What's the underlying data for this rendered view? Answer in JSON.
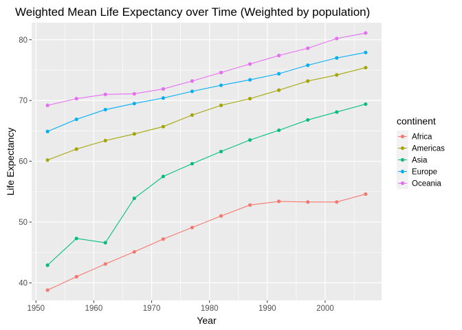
{
  "chart_data": {
    "type": "line",
    "title": "Weighted Mean Life Expectancy over Time (Weighted by population)",
    "xlabel": "Year",
    "ylabel": "Life Expectancy",
    "xlim": [
      1949.25,
      2009.75
    ],
    "ylim": [
      37.1,
      82.8
    ],
    "x_ticks": [
      1950,
      1960,
      1970,
      1980,
      1990,
      2000
    ],
    "y_ticks": [
      40,
      50,
      60,
      70,
      80
    ],
    "x": [
      1952,
      1957,
      1962,
      1967,
      1972,
      1977,
      1982,
      1987,
      1992,
      1997,
      2002,
      2007
    ],
    "grid": true,
    "legend_title": "continent",
    "legend_position": "right",
    "series": [
      {
        "name": "Africa",
        "color": "#F8766D",
        "values": [
          38.8,
          41.0,
          43.1,
          45.1,
          47.2,
          49.1,
          51.0,
          52.8,
          53.4,
          53.3,
          53.3,
          54.6
        ]
      },
      {
        "name": "Americas",
        "color": "#A3A500",
        "values": [
          60.2,
          62.0,
          63.4,
          64.5,
          65.7,
          67.6,
          69.2,
          70.3,
          71.7,
          73.2,
          74.2,
          75.4
        ]
      },
      {
        "name": "Asia",
        "color": "#00BF7D",
        "values": [
          42.9,
          47.3,
          46.6,
          53.9,
          57.5,
          59.6,
          61.6,
          63.5,
          65.1,
          66.8,
          68.1,
          69.4
        ]
      },
      {
        "name": "Europe",
        "color": "#00B0F6",
        "values": [
          64.9,
          66.9,
          68.5,
          69.5,
          70.4,
          71.5,
          72.5,
          73.4,
          74.4,
          75.8,
          77.0,
          77.9
        ]
      },
      {
        "name": "Oceania",
        "color": "#E76BF3",
        "values": [
          69.2,
          70.3,
          71.0,
          71.1,
          71.9,
          73.2,
          74.6,
          76.0,
          77.4,
          78.6,
          80.2,
          81.1
        ]
      }
    ]
  }
}
